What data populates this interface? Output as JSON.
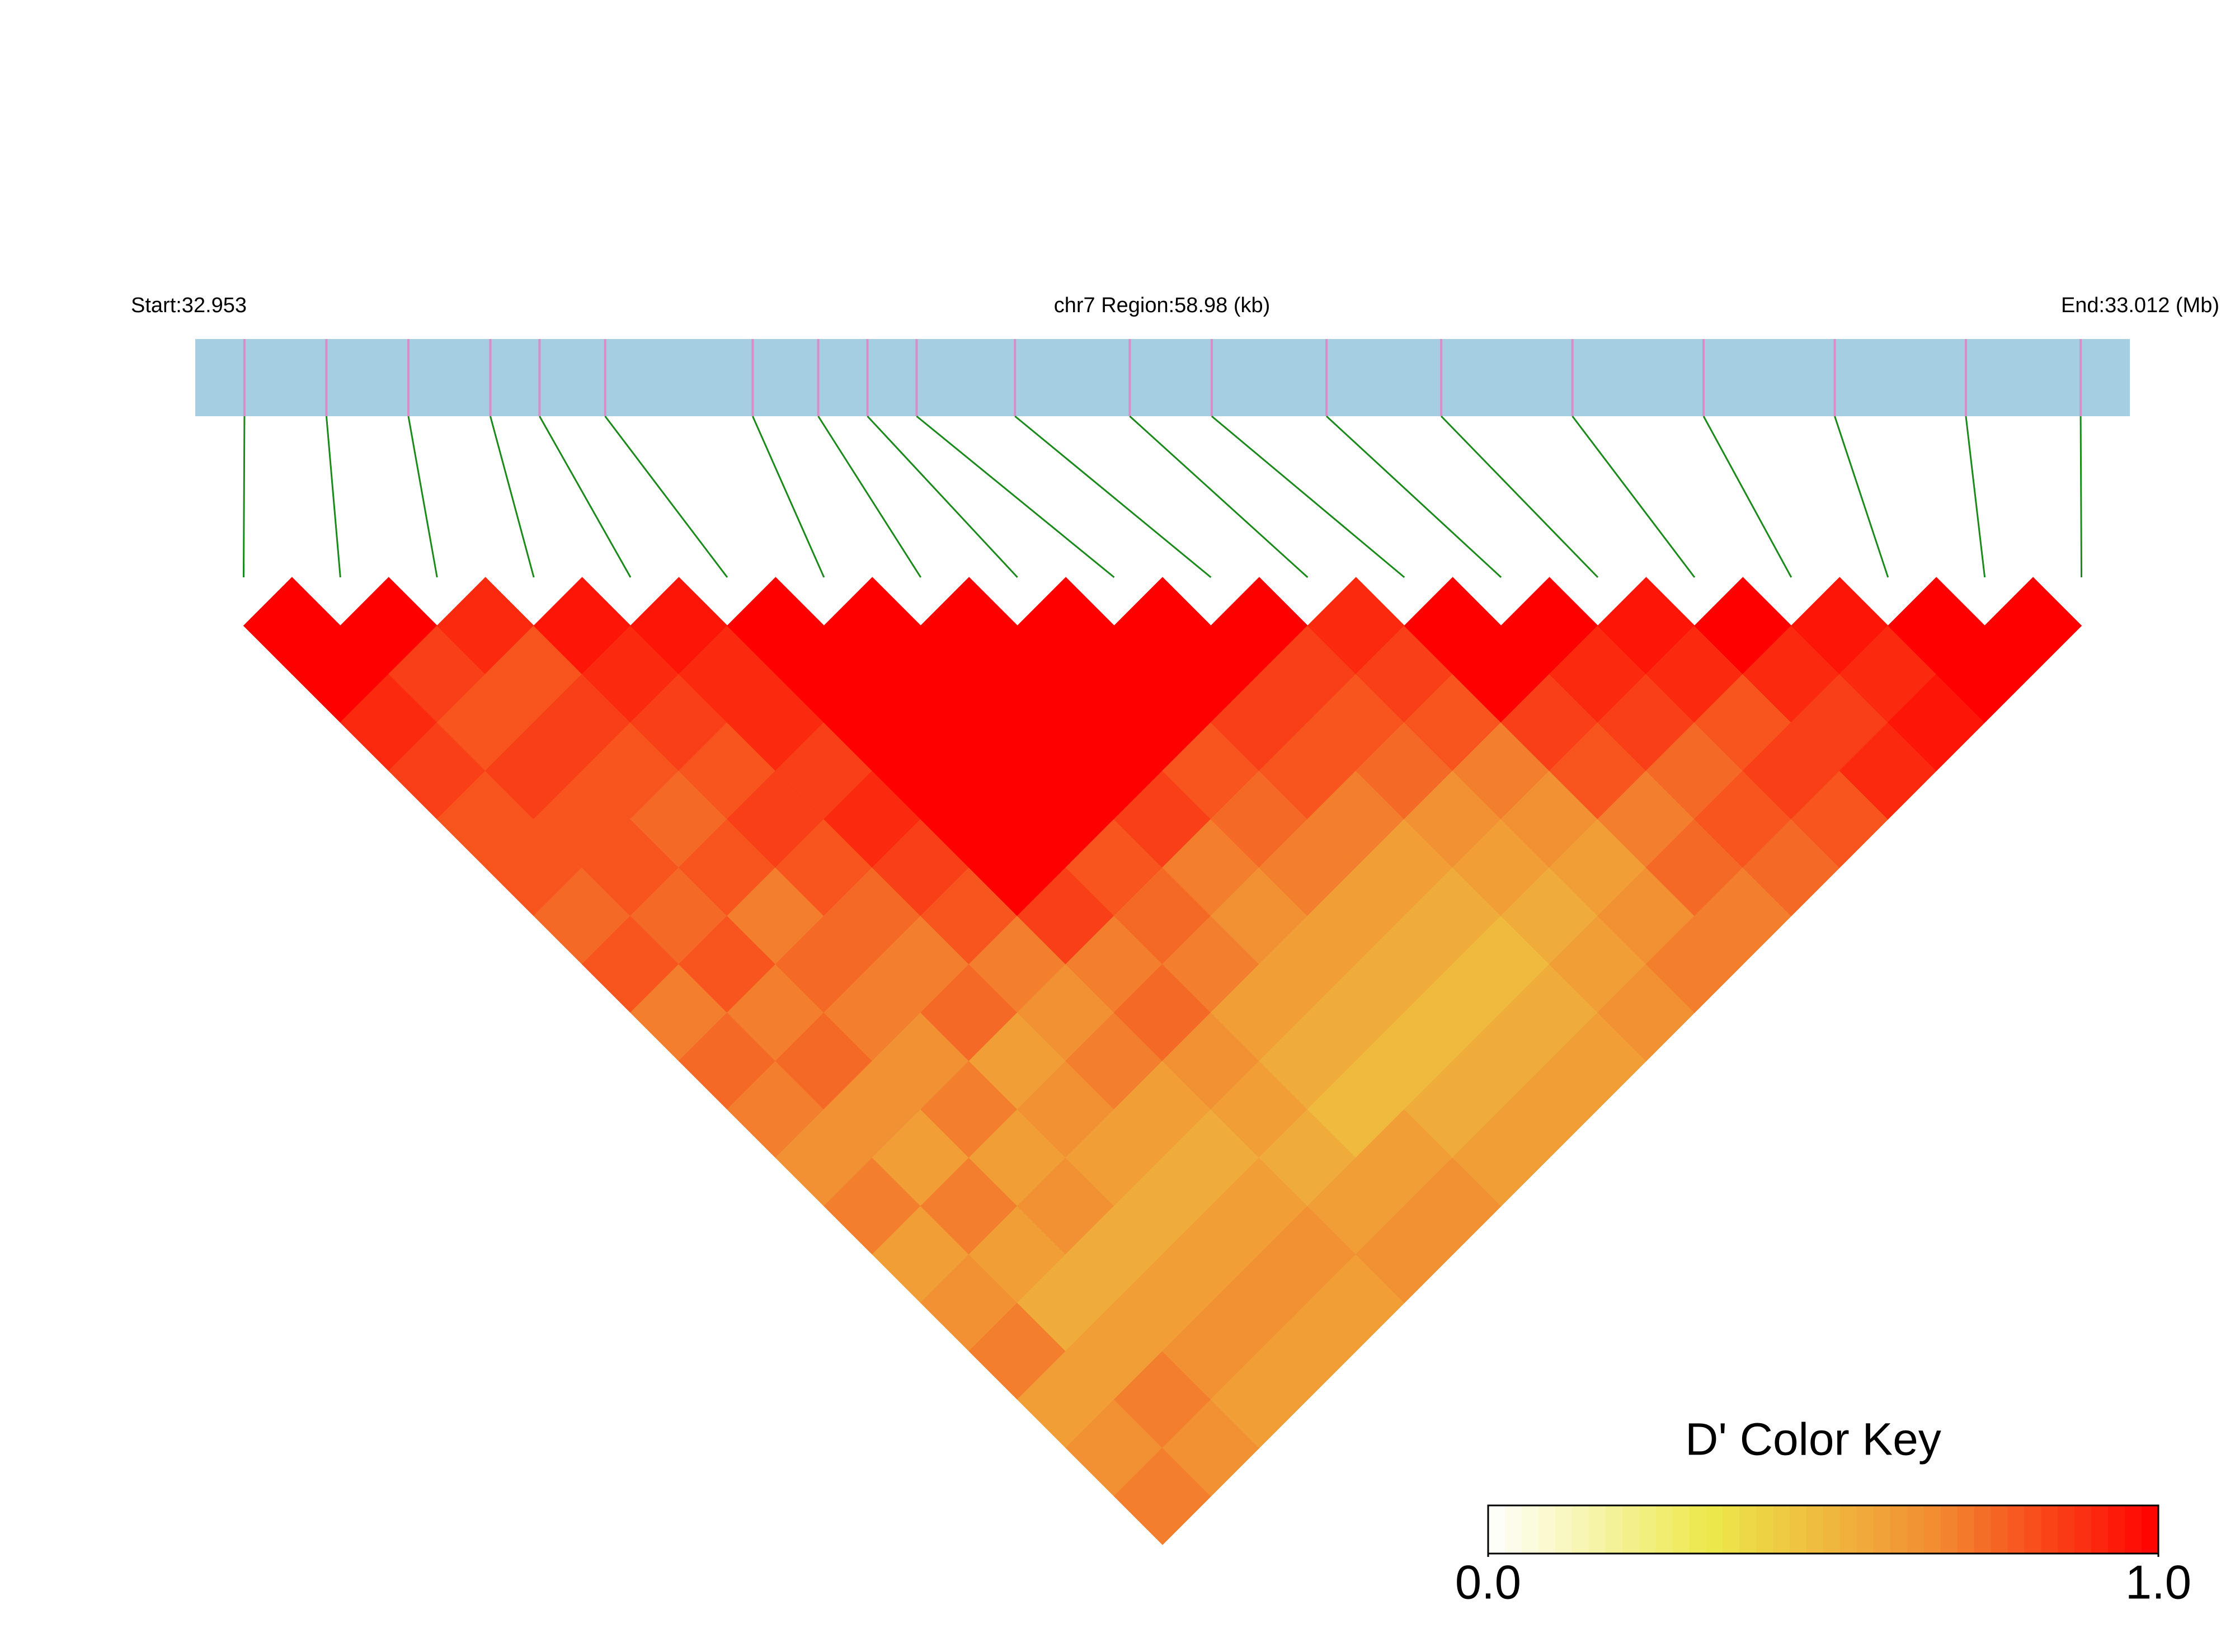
{
  "chart_data": {
    "type": "ld-heatmap",
    "start_label": "Start:32.953",
    "title": "chr7 Region:58.98 (kb)",
    "end_label": "End:33.012 (Mb)",
    "xlim": [
      32.953,
      33.012
    ],
    "snp_positions": [
      32.9545,
      32.957,
      32.9595,
      32.962,
      32.9635,
      32.9655,
      32.97,
      32.972,
      32.9735,
      32.975,
      32.978,
      32.9815,
      32.984,
      32.9875,
      32.991,
      32.995,
      32.999,
      33.003,
      33.007,
      33.0105
    ],
    "matrix": [
      [
        1,
        1,
        0.9,
        0.85,
        0.8,
        0.8,
        0.75,
        0.8,
        0.7,
        0.75,
        0.7,
        0.65,
        0.7,
        0.6,
        0.65,
        0.7,
        0.6,
        0.65,
        0.7
      ],
      [
        1,
        0.85,
        0.8,
        0.85,
        0.8,
        0.8,
        0.75,
        0.8,
        0.7,
        0.75,
        0.65,
        0.6,
        0.7,
        0.6,
        0.55,
        0.6,
        0.7,
        0.65
      ],
      [
        0.9,
        0.8,
        0.85,
        0.8,
        0.75,
        0.8,
        0.7,
        0.75,
        0.7,
        0.65,
        0.7,
        0.6,
        0.65,
        0.55,
        0.6,
        0.65,
        0.6
      ],
      [
        0.95,
        0.9,
        0.85,
        0.8,
        0.85,
        0.8,
        0.75,
        0.7,
        0.75,
        0.6,
        0.65,
        0.6,
        0.55,
        0.6,
        0.65,
        0.6
      ],
      [
        0.95,
        0.9,
        0.9,
        0.85,
        0.9,
        0.85,
        0.8,
        0.7,
        0.65,
        0.7,
        0.6,
        0.55,
        0.6,
        0.65,
        0.6
      ],
      [
        1,
        1,
        1,
        1,
        1,
        1,
        0.85,
        0.7,
        0.75,
        0.65,
        0.6,
        0.55,
        0.6,
        0.65
      ],
      [
        1,
        1,
        1,
        1,
        1,
        0.8,
        0.75,
        0.7,
        0.6,
        0.55,
        0.5,
        0.6,
        0.65
      ],
      [
        1,
        1,
        1,
        1,
        0.85,
        0.7,
        0.65,
        0.6,
        0.55,
        0.5,
        0.55,
        0.6
      ],
      [
        1,
        1,
        1,
        0.8,
        0.75,
        0.7,
        0.6,
        0.55,
        0.5,
        0.55,
        0.6
      ],
      [
        1,
        1,
        0.85,
        0.8,
        0.7,
        0.6,
        0.55,
        0.5,
        0.55,
        0.6
      ],
      [
        1,
        0.85,
        0.8,
        0.75,
        0.65,
        0.6,
        0.55,
        0.6,
        0.65
      ],
      [
        0.9,
        0.85,
        0.8,
        0.7,
        0.65,
        0.6,
        0.65,
        0.7
      ],
      [
        1,
        1,
        0.85,
        0.8,
        0.7,
        0.75,
        0.7
      ],
      [
        1,
        0.9,
        0.85,
        0.75,
        0.8,
        0.75
      ],
      [
        0.95,
        0.9,
        0.8,
        0.85,
        0.8
      ],
      [
        1,
        0.9,
        0.85,
        0.9
      ],
      [
        0.95,
        0.9,
        0.95
      ],
      [
        1,
        1
      ],
      [
        1
      ]
    ],
    "color_scale": [
      "#ffffff",
      "#ece84a",
      "#f28c32",
      "#ff0000"
    ],
    "key_title": "D' Color Key",
    "key_ticks": [
      {
        "value": 0,
        "label": "0.0"
      },
      {
        "value": 1,
        "label": "1.0"
      }
    ]
  }
}
